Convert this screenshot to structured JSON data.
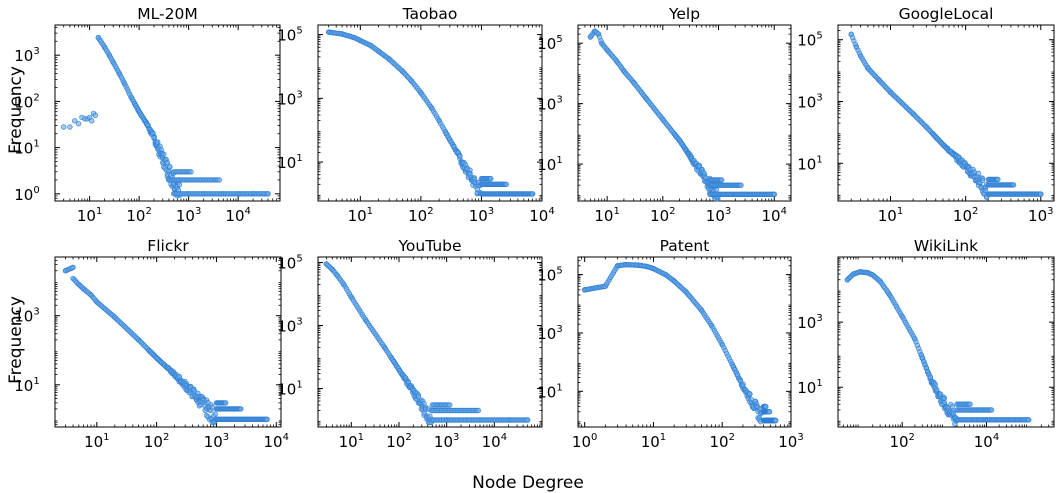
{
  "colors": {
    "marker_fill": "#6aaae8",
    "marker_edge": "#2f7fd4"
  },
  "figure": {
    "xlabel": "Node Degree",
    "ylabel": "Frequency"
  },
  "chart_data": [
    {
      "type": "scatter",
      "title": "ML-20M",
      "xscale": "log",
      "yscale": "log",
      "grid": false,
      "xlim": [
        2,
        70000
      ],
      "ylim": [
        0.7,
        4500
      ],
      "xticks": [
        {
          "base": "10",
          "exp": "1",
          "v": 10
        },
        {
          "base": "10",
          "exp": "2",
          "v": 100
        },
        {
          "base": "10",
          "exp": "3",
          "v": 1000
        },
        {
          "base": "10",
          "exp": "4",
          "v": 10000
        }
      ],
      "yticks": [
        {
          "base": "10",
          "exp": "0",
          "v": 1
        },
        {
          "base": "10",
          "exp": "1",
          "v": 10
        },
        {
          "base": "10",
          "exp": "2",
          "v": 100
        },
        {
          "base": "10",
          "exp": "3",
          "v": 1000
        }
      ],
      "points": [
        [
          3,
          28
        ],
        [
          4,
          28
        ],
        [
          5,
          38
        ],
        [
          6,
          33
        ],
        [
          7,
          45
        ],
        [
          8,
          42
        ],
        [
          9,
          42
        ],
        [
          10,
          45
        ],
        [
          11,
          38
        ],
        [
          12,
          55
        ],
        [
          13,
          50
        ],
        [
          15,
          2400
        ],
        [
          20,
          1500
        ],
        [
          25,
          1000
        ],
        [
          30,
          700
        ],
        [
          40,
          400
        ],
        [
          50,
          250
        ],
        [
          70,
          120
        ],
        [
          100,
          60
        ],
        [
          150,
          30
        ],
        [
          200,
          16
        ],
        [
          300,
          6
        ],
        [
          400,
          3
        ],
        [
          500,
          2
        ],
        [
          700,
          1
        ],
        [
          1000,
          1
        ],
        [
          2000,
          1
        ],
        [
          5000,
          1
        ],
        [
          10000,
          1
        ],
        [
          20000,
          1
        ],
        [
          40000,
          1
        ]
      ]
    },
    {
      "type": "scatter",
      "title": "Taobao",
      "xscale": "log",
      "yscale": "log",
      "grid": false,
      "xlim": [
        2,
        10000
      ],
      "ylim": [
        0.6,
        200000
      ],
      "xticks": [
        {
          "base": "10",
          "exp": "1",
          "v": 10
        },
        {
          "base": "10",
          "exp": "2",
          "v": 100
        },
        {
          "base": "10",
          "exp": "3",
          "v": 1000
        },
        {
          "base": "10",
          "exp": "4",
          "v": 10000
        }
      ],
      "yticks": [
        {
          "base": "10",
          "exp": "1",
          "v": 10
        },
        {
          "base": "10",
          "exp": "3",
          "v": 1000
        },
        {
          "base": "10",
          "exp": "5",
          "v": 100000
        }
      ],
      "points": [
        [
          3,
          120000
        ],
        [
          5,
          105000
        ],
        [
          8,
          80000
        ],
        [
          10,
          65000
        ],
        [
          15,
          45000
        ],
        [
          20,
          30000
        ],
        [
          30,
          17000
        ],
        [
          50,
          7000
        ],
        [
          70,
          3500
        ],
        [
          100,
          1500
        ],
        [
          150,
          500
        ],
        [
          200,
          200
        ],
        [
          300,
          50
        ],
        [
          400,
          20
        ],
        [
          500,
          8
        ],
        [
          700,
          3
        ],
        [
          1000,
          1
        ],
        [
          2000,
          1
        ],
        [
          4000,
          1
        ],
        [
          7000,
          1
        ]
      ]
    },
    {
      "type": "scatter",
      "title": "Yelp",
      "xscale": "log",
      "yscale": "log",
      "grid": false,
      "xlim": [
        3,
        20000
      ],
      "ylim": [
        0.6,
        400000
      ],
      "xticks": [
        {
          "base": "10",
          "exp": "1",
          "v": 10
        },
        {
          "base": "10",
          "exp": "2",
          "v": 100
        },
        {
          "base": "10",
          "exp": "3",
          "v": 1000
        },
        {
          "base": "10",
          "exp": "4",
          "v": 10000
        }
      ],
      "yticks": [
        {
          "base": "10",
          "exp": "1",
          "v": 10
        },
        {
          "base": "10",
          "exp": "3",
          "v": 1000
        },
        {
          "base": "10",
          "exp": "5",
          "v": 100000
        }
      ],
      "points": [
        [
          5,
          160000
        ],
        [
          6,
          250000
        ],
        [
          7,
          200000
        ],
        [
          8,
          100000
        ],
        [
          10,
          60000
        ],
        [
          15,
          25000
        ],
        [
          20,
          12000
        ],
        [
          30,
          5000
        ],
        [
          50,
          1500
        ],
        [
          100,
          300
        ],
        [
          200,
          60
        ],
        [
          300,
          20
        ],
        [
          500,
          5
        ],
        [
          700,
          2
        ],
        [
          1000,
          1
        ],
        [
          3000,
          1
        ],
        [
          10000,
          1
        ]
      ]
    },
    {
      "type": "scatter",
      "title": "GoogleLocal",
      "xscale": "log",
      "yscale": "log",
      "grid": false,
      "xlim": [
        2,
        1500
      ],
      "ylim": [
        0.6,
        300000
      ],
      "xticks": [
        {
          "base": "10",
          "exp": "1",
          "v": 10
        },
        {
          "base": "10",
          "exp": "2",
          "v": 100
        },
        {
          "base": "10",
          "exp": "3",
          "v": 1000
        }
      ],
      "yticks": [
        {
          "base": "10",
          "exp": "1",
          "v": 10
        },
        {
          "base": "10",
          "exp": "3",
          "v": 1000
        },
        {
          "base": "10",
          "exp": "5",
          "v": 100000
        }
      ],
      "points": [
        [
          3,
          150000
        ],
        [
          3.5,
          60000
        ],
        [
          4,
          30000
        ],
        [
          5,
          12000
        ],
        [
          7,
          5000
        ],
        [
          10,
          2000
        ],
        [
          20,
          400
        ],
        [
          30,
          150
        ],
        [
          50,
          40
        ],
        [
          100,
          8
        ],
        [
          150,
          3
        ],
        [
          200,
          1
        ],
        [
          400,
          1
        ],
        [
          1000,
          1
        ]
      ]
    },
    {
      "type": "scatter",
      "title": "Flickr",
      "xscale": "log",
      "yscale": "log",
      "grid": false,
      "xlim": [
        2,
        12000
      ],
      "ylim": [
        0.6,
        50000
      ],
      "xticks": [
        {
          "base": "10",
          "exp": "1",
          "v": 10
        },
        {
          "base": "10",
          "exp": "2",
          "v": 100
        },
        {
          "base": "10",
          "exp": "3",
          "v": 1000
        },
        {
          "base": "10",
          "exp": "4",
          "v": 10000
        }
      ],
      "yticks": [
        {
          "base": "10",
          "exp": "1",
          "v": 10
        },
        {
          "base": "10",
          "exp": "3",
          "v": 1000
        }
      ],
      "points": [
        [
          3,
          20000
        ],
        [
          4,
          25000
        ],
        [
          4,
          12000
        ],
        [
          5,
          8000
        ],
        [
          6,
          6000
        ],
        [
          8,
          4000
        ],
        [
          10,
          2500
        ],
        [
          20,
          900
        ],
        [
          50,
          200
        ],
        [
          100,
          60
        ],
        [
          200,
          20
        ],
        [
          500,
          4
        ],
        [
          1000,
          1
        ],
        [
          3000,
          1
        ],
        [
          7000,
          1
        ]
      ]
    },
    {
      "type": "scatter",
      "title": "YouTube",
      "xscale": "log",
      "yscale": "log",
      "grid": false,
      "xlim": [
        2,
        100000
      ],
      "ylim": [
        0.6,
        150000
      ],
      "xticks": [
        {
          "base": "10",
          "exp": "1",
          "v": 10
        },
        {
          "base": "10",
          "exp": "2",
          "v": 100
        },
        {
          "base": "10",
          "exp": "3",
          "v": 1000
        },
        {
          "base": "10",
          "exp": "4",
          "v": 10000
        }
      ],
      "yticks": [
        {
          "base": "10",
          "exp": "1",
          "v": 10
        },
        {
          "base": "10",
          "exp": "3",
          "v": 1000
        },
        {
          "base": "10",
          "exp": "5",
          "v": 100000
        }
      ],
      "points": [
        [
          3,
          90000
        ],
        [
          4,
          60000
        ],
        [
          5,
          40000
        ],
        [
          7,
          20000
        ],
        [
          10,
          8000
        ],
        [
          20,
          1500
        ],
        [
          50,
          200
        ],
        [
          100,
          40
        ],
        [
          200,
          8
        ],
        [
          300,
          3
        ],
        [
          500,
          1
        ],
        [
          1000,
          1
        ],
        [
          5000,
          1
        ],
        [
          20000,
          1
        ],
        [
          50000,
          1
        ]
      ]
    },
    {
      "type": "scatter",
      "title": "Patent",
      "xscale": "log",
      "yscale": "log",
      "grid": false,
      "xlim": [
        0.8,
        1000
      ],
      "ylim": [
        0.6,
        400000
      ],
      "xticks": [
        {
          "base": "10",
          "exp": "0",
          "v": 1
        },
        {
          "base": "10",
          "exp": "1",
          "v": 10
        },
        {
          "base": "10",
          "exp": "2",
          "v": 100
        },
        {
          "base": "10",
          "exp": "3",
          "v": 1000
        }
      ],
      "yticks": [
        {
          "base": "10",
          "exp": "1",
          "v": 10
        },
        {
          "base": "10",
          "exp": "3",
          "v": 1000
        },
        {
          "base": "10",
          "exp": "5",
          "v": 100000
        }
      ],
      "points": [
        [
          1,
          30000
        ],
        [
          2,
          40000
        ],
        [
          3,
          200000
        ],
        [
          4,
          220000
        ],
        [
          6,
          210000
        ],
        [
          8,
          190000
        ],
        [
          10,
          160000
        ],
        [
          15,
          100000
        ],
        [
          20,
          60000
        ],
        [
          30,
          25000
        ],
        [
          50,
          6000
        ],
        [
          70,
          1800
        ],
        [
          100,
          400
        ],
        [
          150,
          60
        ],
        [
          200,
          15
        ],
        [
          300,
          3
        ],
        [
          400,
          1
        ],
        [
          600,
          1
        ]
      ]
    },
    {
      "type": "scatter",
      "title": "WikiLink",
      "xscale": "log",
      "yscale": "log",
      "grid": false,
      "xlim": [
        3,
        400000
      ],
      "ylim": [
        0.6,
        100000
      ],
      "xticks": [
        {
          "base": "10",
          "exp": "2",
          "v": 100
        },
        {
          "base": "10",
          "exp": "4",
          "v": 10000
        }
      ],
      "yticks": [
        {
          "base": "10",
          "exp": "1",
          "v": 10
        },
        {
          "base": "10",
          "exp": "3",
          "v": 1000
        }
      ],
      "points": [
        [
          5,
          20000
        ],
        [
          7,
          30000
        ],
        [
          10,
          35000
        ],
        [
          15,
          33000
        ],
        [
          20,
          28000
        ],
        [
          30,
          18000
        ],
        [
          50,
          7000
        ],
        [
          100,
          1500
        ],
        [
          200,
          300
        ],
        [
          300,
          80
        ],
        [
          500,
          15
        ],
        [
          1000,
          3
        ],
        [
          2000,
          1
        ],
        [
          10000,
          1
        ],
        [
          100000,
          1
        ]
      ]
    }
  ]
}
